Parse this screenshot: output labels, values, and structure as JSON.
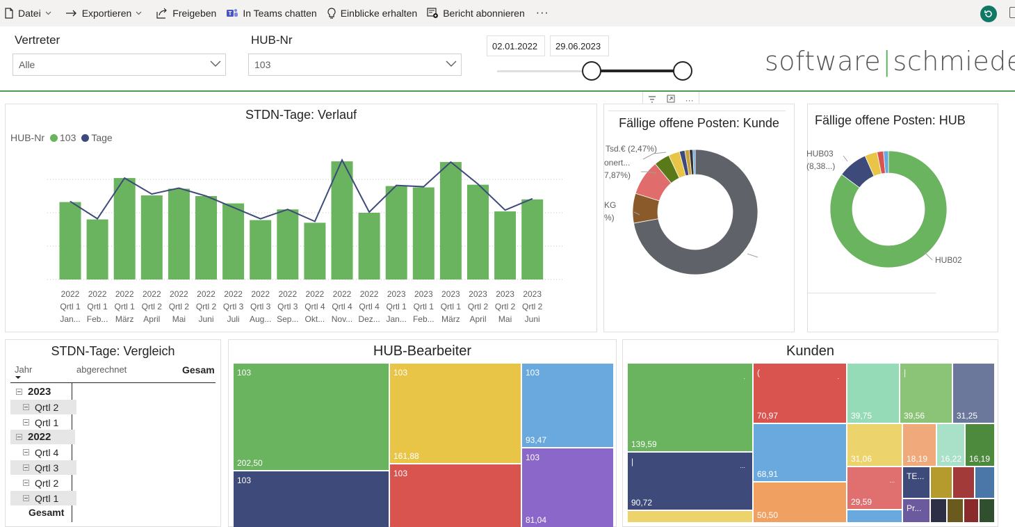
{
  "toolbar": {
    "file": "Datei",
    "export": "Exportieren",
    "share": "Freigeben",
    "teams": "In Teams chatten",
    "insights": "Einblicke erhalten",
    "subscribe": "Bericht abonnieren",
    "more": "···"
  },
  "filters": {
    "vertreter_label": "Vertreter",
    "vertreter_value": "Alle",
    "hub_label": "HUB-Nr",
    "hub_value": "103",
    "date_from": "02.01.2022",
    "date_to": "29.06.2023",
    "slider_start_fraction": 0.0,
    "slider_end_fraction": 1.0
  },
  "logo": {
    "left": "software",
    "right": "schmiede"
  },
  "colors": {
    "green": "#6ab35f",
    "navy": "#3e4a7a",
    "accent_line": "#4e9a51",
    "gray": "#5f6268",
    "brown": "#8b5a2b",
    "salmon": "#e06c6c"
  },
  "combo_chart": {
    "title": "STDN-Tage: Verlauf",
    "legend_title": "HUB-Nr",
    "legend_series_1": "103",
    "legend_series_2": "Tage"
  },
  "chart_data": [
    {
      "type": "bar",
      "title": "STDN-Tage: Verlauf",
      "categories": [
        [
          "2022",
          "Qrtl 1",
          "Jan..."
        ],
        [
          "2022",
          "Qrtl 1",
          "Feb..."
        ],
        [
          "2022",
          "Qrtl 1",
          "März"
        ],
        [
          "2022",
          "Qrtl 2",
          "April"
        ],
        [
          "2022",
          "Qrtl 2",
          "Mai"
        ],
        [
          "2022",
          "Qrtl 2",
          "Juni"
        ],
        [
          "2022",
          "Qrtl 3",
          "Juli"
        ],
        [
          "2022",
          "Qrtl 3",
          "Aug..."
        ],
        [
          "2022",
          "Qrtl 3",
          "Sep..."
        ],
        [
          "2022",
          "Qrtl 4",
          "Okt..."
        ],
        [
          "2022",
          "Qrtl 4",
          "Nov..."
        ],
        [
          "2022",
          "Qrtl 4",
          "Dez..."
        ],
        [
          "2023",
          "Qrtl 1",
          "Jan..."
        ],
        [
          "2023",
          "Qrtl 1",
          "Feb..."
        ],
        [
          "2023",
          "Qrtl 1",
          "März"
        ],
        [
          "2023",
          "Qrtl 2",
          "April"
        ],
        [
          "2023",
          "Qrtl 2",
          "Mai"
        ],
        [
          "2023",
          "Qrtl 2",
          "Juni"
        ]
      ],
      "series": [
        {
          "name": "103",
          "kind": "bar",
          "values": [
            116,
            90,
            152,
            126,
            136,
            125,
            114,
            89,
            105,
            85,
            177,
            100,
            140,
            138,
            176,
            142,
            102,
            120
          ]
        },
        {
          "name": "Tage",
          "kind": "line",
          "values": [
            117,
            91,
            152,
            128,
            137,
            125,
            108,
            91,
            105,
            87,
            179,
            101,
            141,
            139,
            176,
            143,
            104,
            121
          ]
        }
      ],
      "ylim": [
        0,
        200
      ],
      "grid": true,
      "legend": "top-left"
    },
    {
      "type": "pie",
      "title": "Fällige offene Posten: Kunde",
      "donut": true,
      "slices": [
        {
          "label": "",
          "value": 62.0,
          "color": "#5f6268"
        },
        {
          "label": "KG",
          "value": 6.6,
          "color": "#8b5a2b"
        },
        {
          "label": "onert...",
          "value": 7.87,
          "color": "#e06c6c"
        },
        {
          "label": "",
          "value": 3.5,
          "color": "#5a7a1a"
        },
        {
          "label": "Tsd.€",
          "value": 2.47,
          "color": "#e8c547"
        },
        {
          "label": "",
          "value": 1.2,
          "color": "#3e4a7a"
        },
        {
          "label": "",
          "value": 1.0,
          "color": "#c9a13b"
        },
        {
          "label": "",
          "value": 0.8,
          "color": "#333333"
        },
        {
          "label": "",
          "value": 0.5,
          "color": "#6aa9de"
        }
      ],
      "visible_labels": [
        "Tsd.€ (2,47%)",
        "onert...",
        "7,87%)",
        "KG",
        "%)"
      ]
    },
    {
      "type": "pie",
      "title": "Fällige offene Posten: HUB",
      "donut": true,
      "slices": [
        {
          "label": "HUB02",
          "value": 86.7,
          "color": "#6ab35f"
        },
        {
          "label": "HUB03",
          "value": 8.38,
          "color": "#3e4a7a"
        },
        {
          "label": "",
          "value": 3.5,
          "color": "#e8c547"
        },
        {
          "label": "",
          "value": 1.8,
          "color": "#d9534f"
        },
        {
          "label": "",
          "value": 1.4,
          "color": "#6aa9de"
        }
      ],
      "visible_labels": [
        "HUB03",
        "(8,38...)",
        "HUB02"
      ]
    }
  ],
  "donut_kunde": {
    "title": "Fällige offene Posten: Kunde",
    "label_1": "Tsd.€ (2,47%)",
    "label_2": "onert...",
    "label_3": "7,87%)",
    "label_4": "KG",
    "label_5": "%)"
  },
  "donut_hub": {
    "title": "Fällige offene Posten: HUB",
    "label_1": "HUB03",
    "label_2": "(8,38...)",
    "label_3": "HUB02"
  },
  "matrix": {
    "title": "STDN-Tage: Vergleich",
    "col_1": "Jahr",
    "col_2": "abgerechnet",
    "col_3": "Gesam",
    "rows": [
      {
        "label": "2023",
        "level": 0
      },
      {
        "label": "Qrtl 2",
        "level": 1
      },
      {
        "label": "Qrtl 1",
        "level": 1
      },
      {
        "label": "2022",
        "level": 0
      },
      {
        "label": "Qrtl 4",
        "level": 1
      },
      {
        "label": "Qrtl 3",
        "level": 1
      },
      {
        "label": "Qrtl 2",
        "level": 1
      },
      {
        "label": "Qrtl 1",
        "level": 1
      }
    ],
    "total": "Gesamt"
  },
  "hub_treemap": {
    "title": "HUB-Bearbeiter",
    "cells": [
      {
        "top": "103",
        "value": "202,50",
        "color": "#6ab35f"
      },
      {
        "top": "103",
        "value": "161,88",
        "color": "#e8c547"
      },
      {
        "top": "103",
        "value": "93,47",
        "color": "#6aa9de"
      },
      {
        "top": "103",
        "value": "",
        "color": "#3e4a7a"
      },
      {
        "top": "103",
        "value": "",
        "color": "#d9534f"
      },
      {
        "top": "103",
        "value": "81,04",
        "color": "#8b67c9"
      }
    ]
  },
  "kunden_treemap": {
    "title": "Kunden",
    "cells": [
      {
        "top": "",
        "value": "139,59",
        "color": "#6ab35f",
        "mark": "."
      },
      {
        "top": "(",
        "value": "70,97",
        "color": "#d9534f",
        "mark": "."
      },
      {
        "top": "",
        "value": "39,75",
        "color": "#96dbb8",
        "mark": ""
      },
      {
        "top": "|",
        "value": "39,56",
        "color": "#8cc477",
        "mark": ""
      },
      {
        "top": "",
        "value": "31,25",
        "color": "#6b779b",
        "mark": ""
      },
      {
        "top": "|",
        "value": "90,72",
        "color": "#3e4a7a",
        "mark": "..."
      },
      {
        "top": "",
        "value": "68,91",
        "color": "#6aa9de",
        "mark": ""
      },
      {
        "top": "",
        "value": "31,06",
        "color": "#edd36b",
        "mark": ""
      },
      {
        "top": "",
        "value": "18,19",
        "color": "#f0a97a",
        "mark": ""
      },
      {
        "top": "",
        "value": "16,22",
        "color": "#a8e0c8",
        "mark": ""
      },
      {
        "top": "",
        "value": "16,19",
        "color": "#4e8a3e",
        "mark": ""
      },
      {
        "top": "",
        "value": "29,59",
        "color": "#e07070",
        "mark": "..."
      },
      {
        "top": "TE...",
        "value": "",
        "color": "#3e4a7a",
        "mark": ""
      },
      {
        "top": "Pr...",
        "value": "",
        "color": "#6b5a9e",
        "mark": ""
      },
      {
        "top": "",
        "value": "50,50",
        "color": "#f0a060",
        "mark": ""
      },
      {
        "top": "",
        "value": "",
        "color": "#edd36b",
        "mark": ""
      }
    ]
  }
}
